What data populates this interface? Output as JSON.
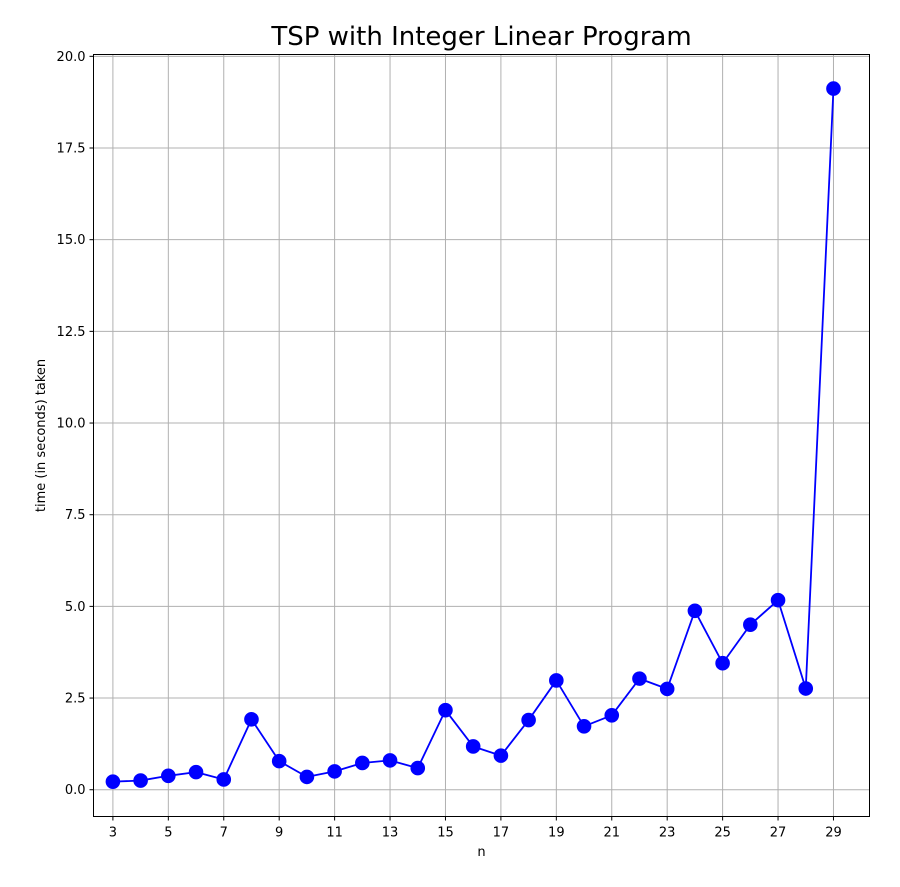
{
  "chart_data": {
    "type": "line",
    "title": "TSP with Integer Linear Program",
    "xlabel": "n",
    "ylabel": "time (in seconds) taken",
    "x": [
      3,
      4,
      5,
      6,
      7,
      8,
      9,
      10,
      11,
      12,
      13,
      14,
      15,
      16,
      17,
      18,
      19,
      20,
      21,
      22,
      23,
      24,
      25,
      26,
      27,
      28,
      29
    ],
    "series": [
      {
        "values": [
          0.22,
          0.25,
          0.38,
          0.48,
          0.28,
          1.92,
          0.78,
          0.35,
          0.5,
          0.73,
          0.8,
          0.59,
          2.17,
          1.18,
          0.93,
          1.9,
          2.98,
          1.73,
          2.03,
          3.03,
          2.75,
          4.88,
          3.45,
          4.5,
          5.17,
          2.76,
          19.12
        ],
        "color": "#0000ff",
        "marker": "circle"
      }
    ],
    "xticks": [
      "3",
      "5",
      "7",
      "9",
      "11",
      "13",
      "15",
      "17",
      "19",
      "21",
      "23",
      "25",
      "27",
      "29"
    ],
    "yticks": [
      "0.0",
      "2.5",
      "5.0",
      "7.5",
      "10.0",
      "12.5",
      "15.0",
      "17.5",
      "20.0"
    ],
    "xlim": [
      2.3,
      30.3
    ],
    "ylim": [
      -0.73,
      20.05
    ],
    "grid": true
  }
}
